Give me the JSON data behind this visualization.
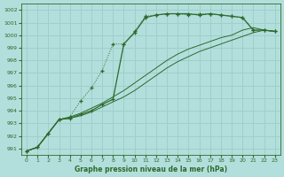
{
  "background_color": "#b2dfdb",
  "grid_color": "#9ecfcc",
  "line_color": "#2d6a2d",
  "xlabel": "Graphe pression niveau de la mer (hPa)",
  "ylim": [
    990.5,
    1002.5
  ],
  "xlim": [
    -0.5,
    23.5
  ],
  "yticks": [
    991,
    992,
    993,
    994,
    995,
    996,
    997,
    998,
    999,
    1000,
    1001,
    1002
  ],
  "xticks": [
    0,
    1,
    2,
    3,
    4,
    5,
    6,
    7,
    8,
    9,
    10,
    11,
    12,
    13,
    14,
    15,
    16,
    17,
    18,
    19,
    20,
    21,
    22,
    23
  ],
  "series": [
    {
      "x": [
        0,
        1,
        2,
        3,
        4,
        5,
        6,
        7,
        8,
        9,
        10,
        11,
        12,
        13,
        14,
        15,
        16,
        17,
        18,
        19,
        20,
        21,
        22,
        23
      ],
      "y": [
        990.8,
        991.1,
        992.2,
        993.3,
        993.5,
        994.8,
        995.8,
        997.2,
        999.3,
        999.3,
        1000.3,
        1001.5,
        1001.6,
        1001.7,
        1001.7,
        1001.6,
        1001.7,
        1001.7,
        1001.6,
        1001.5,
        1001.4,
        1000.4,
        1000.4,
        1000.3
      ],
      "style": "dotted_markers"
    },
    {
      "x": [
        0,
        1,
        2,
        3,
        4,
        5,
        6,
        7,
        8,
        9,
        10,
        11,
        12,
        13,
        14,
        15,
        16,
        17,
        18,
        19,
        20,
        21,
        22,
        23
      ],
      "y": [
        990.8,
        991.1,
        992.2,
        993.3,
        993.4,
        993.7,
        994.0,
        994.5,
        994.9,
        999.3,
        1000.2,
        1001.4,
        1001.6,
        1001.7,
        1001.7,
        1001.7,
        1001.6,
        1001.7,
        1001.6,
        1001.5,
        1001.4,
        1000.4,
        1000.4,
        1000.3
      ],
      "style": "solid_markers"
    },
    {
      "x": [
        0,
        1,
        2,
        3,
        4,
        5,
        6,
        7,
        8,
        9,
        10,
        11,
        12,
        13,
        14,
        15,
        16,
        17,
        18,
        19,
        20,
        21,
        22,
        23
      ],
      "y": [
        990.8,
        991.1,
        992.2,
        993.3,
        993.4,
        993.6,
        993.9,
        994.3,
        994.7,
        995.1,
        995.6,
        996.2,
        996.8,
        997.4,
        997.9,
        998.3,
        998.7,
        999.0,
        999.3,
        999.6,
        999.9,
        1000.2,
        1000.4,
        1000.3
      ],
      "style": "solid_thin"
    },
    {
      "x": [
        0,
        1,
        2,
        3,
        4,
        5,
        6,
        7,
        8,
        9,
        10,
        11,
        12,
        13,
        14,
        15,
        16,
        17,
        18,
        19,
        20,
        21,
        22,
        23
      ],
      "y": [
        990.8,
        991.1,
        992.2,
        993.3,
        993.5,
        993.8,
        994.2,
        994.6,
        995.1,
        995.6,
        996.2,
        996.8,
        997.4,
        998.0,
        998.5,
        998.9,
        999.2,
        999.5,
        999.8,
        1000.0,
        1000.4,
        1000.6,
        1000.4,
        1000.3
      ],
      "style": "solid_thin"
    }
  ]
}
